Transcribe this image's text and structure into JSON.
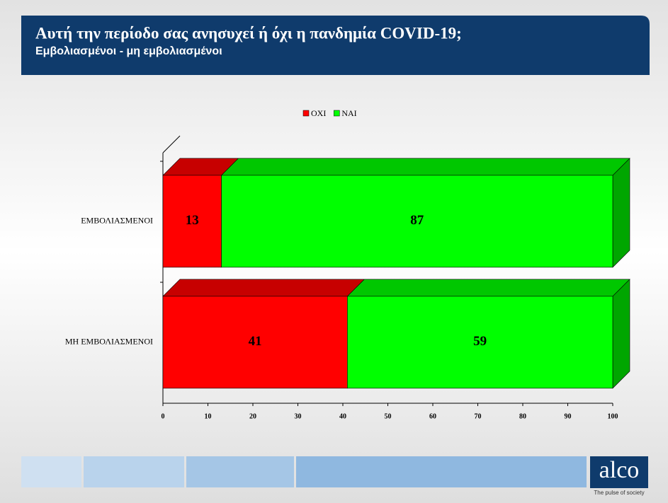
{
  "chart_data": {
    "type": "bar",
    "orientation": "horizontal",
    "stacked": true,
    "title": "Αυτή την περίοδο σας ανησυχεί ή όχι η πανδημία COVID-19;",
    "subtitle": "Εμβολιασμένοι - μη εμβολιασμένοι",
    "categories": [
      "ΕΜΒΟΛΙΑΣΜΕΝΟΙ",
      "ΜΗ ΕΜΒΟΛΙΑΣΜΕΝΟΙ"
    ],
    "series": [
      {
        "name": "ΟΧΙ",
        "color": "#ff0000",
        "values": [
          13,
          41
        ]
      },
      {
        "name": "ΝΑΙ",
        "color": "#00ff00",
        "values": [
          87,
          59
        ]
      }
    ],
    "xlim": [
      0,
      100
    ],
    "xticks": [
      0,
      10,
      20,
      30,
      40,
      50,
      60,
      70,
      80,
      90,
      100
    ],
    "legend": "top"
  },
  "footer": {
    "logo": "alco",
    "tagline": "The pulse of society"
  }
}
